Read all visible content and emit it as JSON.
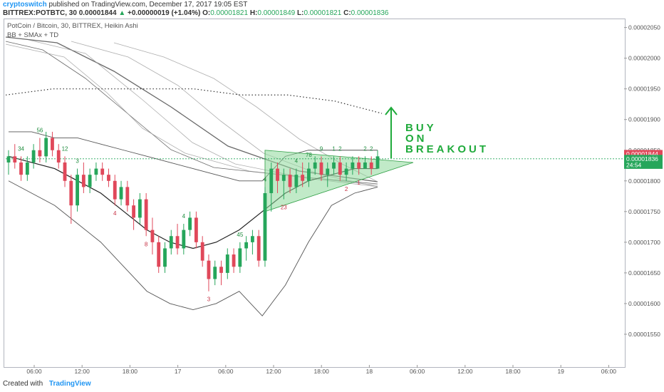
{
  "header": {
    "username": "cryptoswitch",
    "published": " published on TradingView.com, December 17, 2017 19:05 EST",
    "symbol": "BITTREX:POTBTC, 30",
    "last": "0.00001844",
    "change": "+0.00000019 (+1.04%)",
    "o_label": "O:",
    "o_value": "0.00001821",
    "h_label": "H:",
    "h_value": "0.00001849",
    "l_label": "L:",
    "l_value": "0.00001821",
    "c_label": "C:",
    "c_value": "0.00001836"
  },
  "legend": {
    "line1": "PotCoin / Bitcoin, 30, BITTREX, Heikin Ashi",
    "line2": "BB + SMAx + TD"
  },
  "footer": {
    "created": "Created with",
    "brand": "TradingView"
  },
  "colors": {
    "up": "#26a65b",
    "down": "#e0485a",
    "triangle": "#8ed99a",
    "annotation": "#1faa3b"
  },
  "chart_data": {
    "type": "candlestick",
    "style": "Heikin Ashi",
    "ylim": [
      1.5e-05,
      2.06e-05
    ],
    "y_ticks": [
      "0.00002050",
      "0.00002000",
      "0.00001950",
      "0.00001900",
      "0.00001850",
      "0.00001800",
      "0.00001750",
      "0.00001700",
      "0.00001650",
      "0.00001600",
      "0.00001550"
    ],
    "x_ticks": [
      "06:00",
      "12:00",
      "18:00",
      "17",
      "06:00",
      "12:00",
      "18:00",
      "18",
      "06:00",
      "12:00",
      "18:00",
      "19",
      "06:00"
    ],
    "price_badges": [
      {
        "text": "0.00001844",
        "color": "#e0485a",
        "value": 1.844e-05
      },
      {
        "text": "0.00001836",
        "color": "#26a65b",
        "value": 1.836e-05
      },
      {
        "text": "24:54",
        "color": "#26a65b",
        "value": 1.826e-05
      }
    ],
    "annotation": [
      "BUY",
      "ON",
      "BREAKOUT"
    ],
    "ohlc": [
      [
        1.83e-05,
        1.85e-05,
        1.81e-05,
        1.84e-05
      ],
      [
        1.84e-05,
        1.86e-05,
        1.82e-05,
        1.83e-05
      ],
      [
        1.83e-05,
        1.84e-05,
        1.8e-05,
        1.81e-05
      ],
      [
        1.81e-05,
        1.84e-05,
        1.8e-05,
        1.83e-05
      ],
      [
        1.83e-05,
        1.86e-05,
        1.82e-05,
        1.85e-05
      ],
      [
        1.85e-05,
        1.87e-05,
        1.83e-05,
        1.84e-05
      ],
      [
        1.84e-05,
        1.88e-05,
        1.83e-05,
        1.87e-05
      ],
      [
        1.87e-05,
        1.88e-05,
        1.84e-05,
        1.85e-05
      ],
      [
        1.85e-05,
        1.86e-05,
        1.82e-05,
        1.83e-05
      ],
      [
        1.83e-05,
        1.84e-05,
        1.79e-05,
        1.8e-05
      ],
      [
        1.8e-05,
        1.81e-05,
        1.73e-05,
        1.76e-05
      ],
      [
        1.76e-05,
        1.82e-05,
        1.75e-05,
        1.81e-05
      ],
      [
        1.81e-05,
        1.83e-05,
        1.78e-05,
        1.79e-05
      ],
      [
        1.79e-05,
        1.82e-05,
        1.78e-05,
        1.81e-05
      ],
      [
        1.81e-05,
        1.83e-05,
        1.8e-05,
        1.82e-05
      ],
      [
        1.82e-05,
        1.83e-05,
        1.8e-05,
        1.81e-05
      ],
      [
        1.81e-05,
        1.82e-05,
        1.79e-05,
        1.8e-05
      ],
      [
        1.8e-05,
        1.81e-05,
        1.76e-05,
        1.77e-05
      ],
      [
        1.77e-05,
        1.8e-05,
        1.76e-05,
        1.79e-05
      ],
      [
        1.79e-05,
        1.8e-05,
        1.75e-05,
        1.76e-05
      ],
      [
        1.76e-05,
        1.77e-05,
        1.72e-05,
        1.74e-05
      ],
      [
        1.74e-05,
        1.78e-05,
        1.73e-05,
        1.77e-05
      ],
      [
        1.77e-05,
        1.78e-05,
        1.71e-05,
        1.72e-05
      ],
      [
        1.72e-05,
        1.74e-05,
        1.68e-05,
        1.7e-05
      ],
      [
        1.7e-05,
        1.71e-05,
        1.65e-05,
        1.66e-05
      ],
      [
        1.66e-05,
        1.7e-05,
        1.65e-05,
        1.69e-05
      ],
      [
        1.69e-05,
        1.72e-05,
        1.68e-05,
        1.71e-05
      ],
      [
        1.71e-05,
        1.73e-05,
        1.68e-05,
        1.69e-05
      ],
      [
        1.69e-05,
        1.73e-05,
        1.68e-05,
        1.72e-05
      ],
      [
        1.72e-05,
        1.75e-05,
        1.71e-05,
        1.74e-05
      ],
      [
        1.74e-05,
        1.75e-05,
        1.69e-05,
        1.7e-05
      ],
      [
        1.7e-05,
        1.71e-05,
        1.66e-05,
        1.67e-05
      ],
      [
        1.67e-05,
        1.68e-05,
        1.62e-05,
        1.64e-05
      ],
      [
        1.64e-05,
        1.67e-05,
        1.63e-05,
        1.66e-05
      ],
      [
        1.66e-05,
        1.67e-05,
        1.63e-05,
        1.65e-05
      ],
      [
        1.65e-05,
        1.69e-05,
        1.64e-05,
        1.68e-05
      ],
      [
        1.68e-05,
        1.69e-05,
        1.65e-05,
        1.66e-05
      ],
      [
        1.66e-05,
        1.7e-05,
        1.65e-05,
        1.69e-05
      ],
      [
        1.69e-05,
        1.71e-05,
        1.67e-05,
        1.7e-05
      ],
      [
        1.7e-05,
        1.72e-05,
        1.68e-05,
        1.71e-05
      ],
      [
        1.71e-05,
        1.72e-05,
        1.66e-05,
        1.67e-05
      ],
      [
        1.67e-05,
        1.79e-05,
        1.66e-05,
        1.78e-05
      ],
      [
        1.78e-05,
        1.83e-05,
        1.75e-05,
        1.82e-05
      ],
      [
        1.82e-05,
        1.83e-05,
        1.78e-05,
        1.8e-05
      ],
      [
        1.8e-05,
        1.82e-05,
        1.77e-05,
        1.81e-05
      ],
      [
        1.81e-05,
        1.82e-05,
        1.78e-05,
        1.79e-05
      ],
      [
        1.79e-05,
        1.82e-05,
        1.78e-05,
        1.81e-05
      ],
      [
        1.81e-05,
        1.83e-05,
        1.79e-05,
        1.8e-05
      ],
      [
        1.8e-05,
        1.83e-05,
        1.79e-05,
        1.82e-05
      ],
      [
        1.82e-05,
        1.84e-05,
        1.81e-05,
        1.83e-05
      ],
      [
        1.83e-05,
        1.84e-05,
        1.8e-05,
        1.81e-05
      ],
      [
        1.81e-05,
        1.83e-05,
        1.79e-05,
        1.82e-05
      ],
      [
        1.82e-05,
        1.84e-05,
        1.81e-05,
        1.83e-05
      ],
      [
        1.83e-05,
        1.84e-05,
        1.8e-05,
        1.81e-05
      ],
      [
        1.81e-05,
        1.83e-05,
        1.8e-05,
        1.82e-05
      ],
      [
        1.82e-05,
        1.84e-05,
        1.81e-05,
        1.83e-05
      ],
      [
        1.83e-05,
        1.84e-05,
        1.81e-05,
        1.82e-05
      ],
      [
        1.82e-05,
        1.84e-05,
        1.82e-05,
        1.83e-05
      ],
      [
        1.83e-05,
        1.84e-05,
        1.81e-05,
        1.82e-05
      ],
      [
        1.82e-05,
        1.85e-05,
        1.82e-05,
        1.84e-05
      ]
    ],
    "bollinger": {
      "upper": [
        1.88e-05,
        1.88e-05,
        1.87e-05,
        1.87e-05,
        1.86e-05,
        1.85e-05,
        1.84e-05,
        1.83e-05,
        1.82e-05,
        1.81e-05,
        1.8e-05,
        1.8e-05,
        1.84e-05,
        1.85e-05,
        1.85e-05,
        1.85e-05,
        1.85e-05
      ],
      "middle": [
        1.84e-05,
        1.83e-05,
        1.82e-05,
        1.8e-05,
        1.78e-05,
        1.75e-05,
        1.72e-05,
        1.7e-05,
        1.69e-05,
        1.7e-05,
        1.72e-05,
        1.75e-05,
        1.78e-05,
        1.8e-05,
        1.81e-05,
        1.82e-05,
        1.82e-05
      ],
      "lower": [
        1.8e-05,
        1.78e-05,
        1.76e-05,
        1.73e-05,
        1.7e-05,
        1.66e-05,
        1.62e-05,
        1.6e-05,
        1.59e-05,
        1.6e-05,
        1.62e-05,
        1.58e-05,
        1.63e-05,
        1.7e-05,
        1.76e-05,
        1.78e-05,
        1.79e-05
      ]
    },
    "sma_long": [
      1.94e-05,
      1.95e-05,
      1.95e-05,
      1.95e-05,
      1.95e-05,
      1.94e-05,
      1.94e-05,
      1.93e-05,
      1.91e-05
    ],
    "triangle": [
      [
        1.85e-05,
        1.75e-05,
        1.83e-05
      ]
    ],
    "td_counts": [
      {
        "i": 2,
        "t": "34",
        "up": true
      },
      {
        "i": 5,
        "t": "56",
        "up": true
      },
      {
        "i": 9,
        "t": "12",
        "up": true
      },
      {
        "i": 11,
        "t": "3",
        "up": true
      },
      {
        "i": 17,
        "t": "4",
        "up": false
      },
      {
        "i": 22,
        "t": "8",
        "up": false
      },
      {
        "i": 28,
        "t": "4",
        "up": true
      },
      {
        "i": 37,
        "t": "45",
        "up": true
      },
      {
        "i": 41,
        "t": "4",
        "up": true
      },
      {
        "i": 46,
        "t": "4",
        "up": true
      },
      {
        "i": 48,
        "t": "78",
        "up": true
      },
      {
        "i": 50,
        "t": "9",
        "up": true
      },
      {
        "i": 52,
        "t": "1",
        "up": true
      },
      {
        "i": 53,
        "t": "2",
        "up": true
      },
      {
        "i": 57,
        "t": "2",
        "up": true
      },
      {
        "i": 58,
        "t": "2",
        "up": true
      },
      {
        "i": 32,
        "t": "3",
        "up": false
      },
      {
        "i": 44,
        "t": "23",
        "up": false
      },
      {
        "i": 54,
        "t": "2",
        "up": false
      },
      {
        "i": 56,
        "t": "1",
        "up": false
      }
    ]
  }
}
